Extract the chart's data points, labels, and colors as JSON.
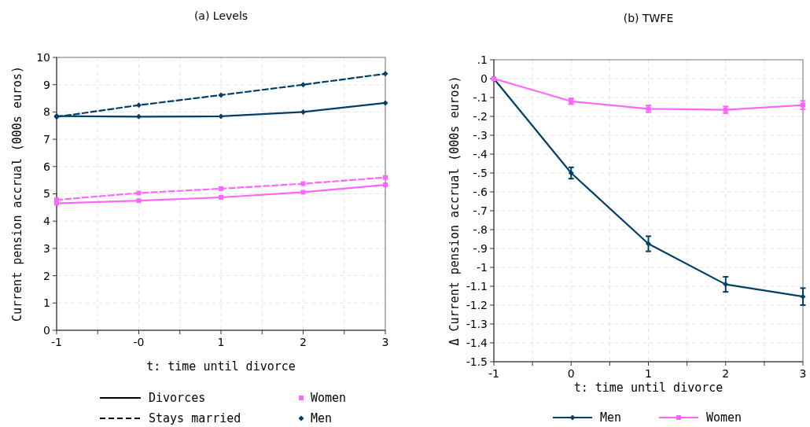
{
  "chart_data": [
    {
      "type": "line",
      "title": "(a) Levels",
      "xlabel": "t: time until divorce",
      "ylabel": "Current pension accrual (000s euros)",
      "x": [
        -1,
        0,
        1,
        2,
        3
      ],
      "xlim": [
        -1,
        3
      ],
      "xticks": [
        -1,
        {
          "value": -0.5,
          "label": null
        },
        {
          "value": 0,
          "label": "-0"
        },
        {
          "value": 0.5,
          "label": null
        },
        1,
        {
          "value": 1.5,
          "label": null
        },
        2,
        {
          "value": 2.5,
          "label": null
        },
        3
      ],
      "ylim": [
        0,
        10
      ],
      "yticks": [
        0,
        1,
        2,
        3,
        4,
        5,
        6,
        7,
        8,
        9,
        10
      ],
      "grid": true,
      "series": [
        {
          "color": "#003f66",
          "marker": "diamond",
          "line_style": "solid",
          "values": [
            7.85,
            7.83,
            7.84,
            8.0,
            8.33
          ]
        },
        {
          "color": "#003f66",
          "marker": "diamond",
          "line_style": "dashed",
          "values": [
            7.82,
            8.25,
            8.62,
            9.0,
            9.4
          ]
        },
        {
          "color": "#ff66ff",
          "marker": "square",
          "line_style": "solid",
          "values": [
            4.65,
            4.75,
            4.87,
            5.06,
            5.33
          ]
        },
        {
          "color": "#ff66ff",
          "marker": "square",
          "line_style": "dashed",
          "values": [
            4.78,
            5.03,
            5.19,
            5.37,
            5.6
          ]
        }
      ],
      "annotations": [
        "Divorces",
        "Stays married",
        "Women",
        "Men"
      ]
    },
    {
      "type": "line",
      "title": "(b) TWFE",
      "xlabel": "t: time until divorce",
      "ylabel": "Δ Current pension accrual (000s euros)",
      "x": [
        -1,
        0,
        1,
        2,
        3
      ],
      "xlim": [
        -1,
        3
      ],
      "xticks": [
        -1,
        {
          "value": -0.5,
          "label": null
        },
        0,
        {
          "value": 0.5,
          "label": null
        },
        1,
        {
          "value": 1.5,
          "label": null
        },
        2,
        {
          "value": 2.5,
          "label": null
        },
        3
      ],
      "ylim": [
        -1.5,
        0.1
      ],
      "yticks": [
        {
          "value": 0.1,
          "label": ".1"
        },
        0,
        {
          "value": -0.1,
          "label": "-.1"
        },
        {
          "value": -0.2,
          "label": "-.2"
        },
        {
          "value": -0.3,
          "label": "-.3"
        },
        {
          "value": -0.4,
          "label": "-.4"
        },
        {
          "value": -0.5,
          "label": "-.5"
        },
        {
          "value": -0.6,
          "label": "-.6"
        },
        {
          "value": -0.7,
          "label": "-.7"
        },
        {
          "value": -0.8,
          "label": "-.8"
        },
        {
          "value": -0.9,
          "label": "-.9"
        },
        -1,
        {
          "value": -1.1,
          "label": "-1.1"
        },
        {
          "value": -1.2,
          "label": "-1.2"
        },
        {
          "value": -1.3,
          "label": "-1.3"
        },
        {
          "value": -1.4,
          "label": "-1.4"
        },
        {
          "value": -1.5,
          "label": "-1.5"
        }
      ],
      "grid": true,
      "legend": "bottom",
      "series": [
        {
          "name": "Men",
          "color": "#003f66",
          "marker": "diamond",
          "line_style": "solid",
          "values": [
            0,
            -0.5,
            -0.875,
            -1.09,
            -1.155
          ],
          "errors": [
            null,
            0.03,
            0.04,
            0.04,
            0.045
          ]
        },
        {
          "name": "Women",
          "color": "#ff66ff",
          "marker": "square",
          "line_style": "solid",
          "values": [
            0,
            -0.12,
            -0.16,
            -0.165,
            -0.14
          ],
          "errors": [
            null,
            0.015,
            0.018,
            0.018,
            0.022
          ]
        }
      ]
    }
  ]
}
